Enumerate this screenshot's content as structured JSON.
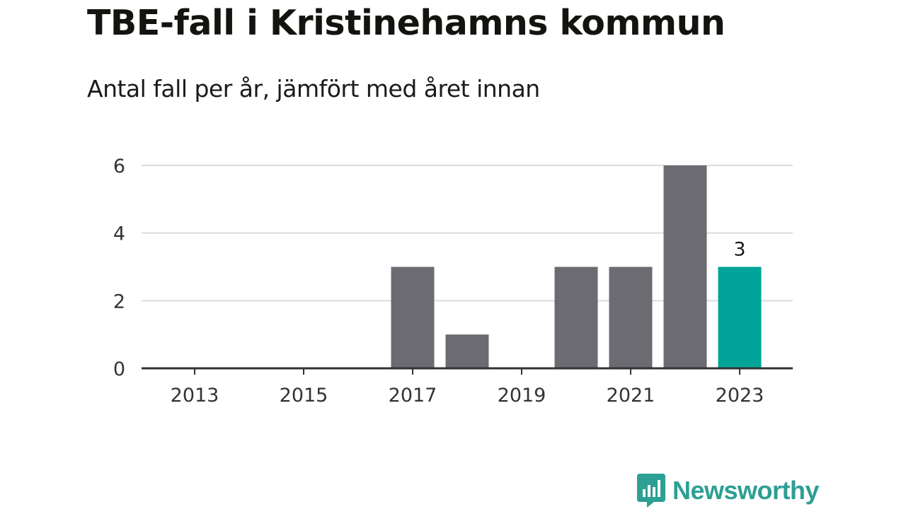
{
  "header": {
    "title": "TBE-fall i Kristinehamns kommun",
    "subtitle": "Antal fall per år, jämfört med året innan"
  },
  "colors": {
    "bar": "#6c6b71",
    "highlight": "#00a499",
    "grid": "#dcdcdc",
    "axis": "#333333",
    "brand": "#2d9f94"
  },
  "chart_data": {
    "type": "bar",
    "categories": [
      2013,
      2014,
      2015,
      2016,
      2017,
      2018,
      2019,
      2020,
      2021,
      2022,
      2023
    ],
    "values": [
      0,
      0,
      0,
      0,
      3,
      1,
      0,
      3,
      3,
      6,
      3
    ],
    "x_tick_labels": [
      "2013",
      "2015",
      "2017",
      "2019",
      "2021",
      "2023"
    ],
    "y_ticks": [
      0,
      2,
      4,
      6
    ],
    "ylim": [
      0,
      6
    ],
    "highlight_category": 2023,
    "data_labels": [
      {
        "category": 2023,
        "text": "3"
      }
    ],
    "grid": true
  },
  "footer": {
    "brand_name": "Newsworthy",
    "logo_icon": "bar-chart-speech-bubble-icon"
  }
}
